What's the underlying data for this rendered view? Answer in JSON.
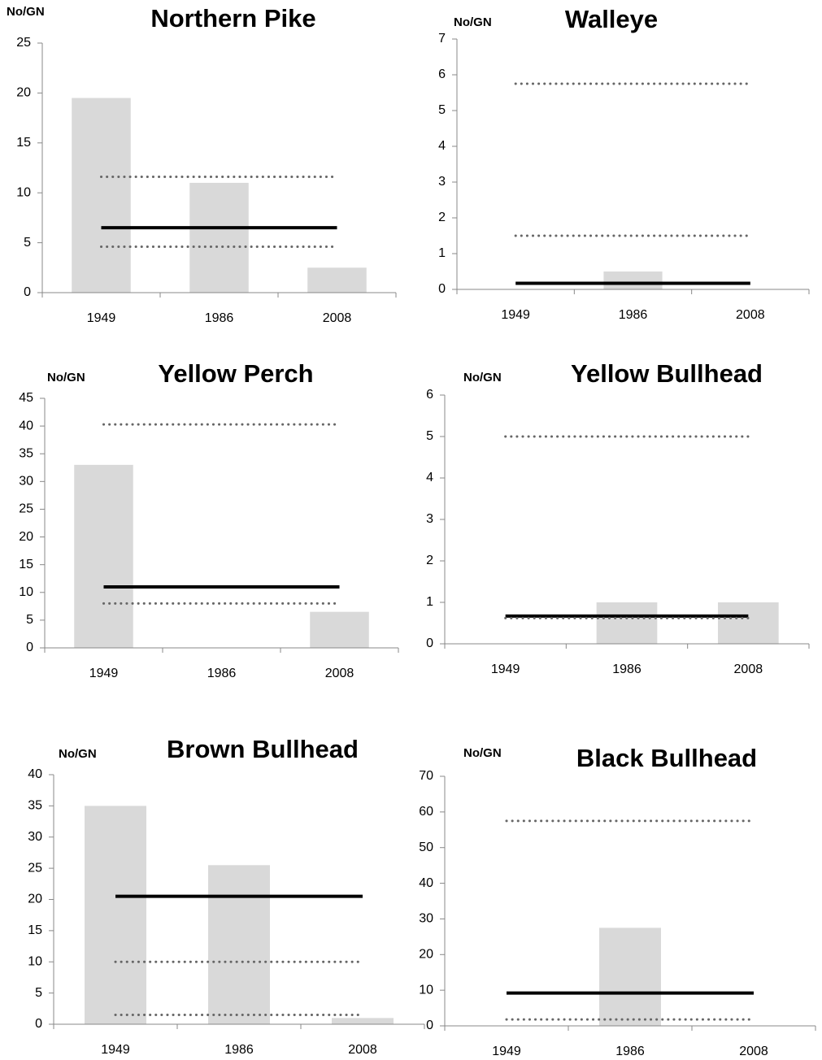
{
  "chart_data": [
    {
      "type": "bar",
      "title": "Northern Pike",
      "y_label": "No/GN",
      "categories": [
        "1949",
        "1986",
        "2008"
      ],
      "values": [
        19.5,
        11,
        2.5
      ],
      "color": "#d9d9d9",
      "ylim": [
        0,
        25
      ],
      "yticks": [
        0,
        5,
        10,
        15,
        20,
        25
      ],
      "reference_lines": [
        {
          "value": 6.5,
          "style": "solid"
        },
        {
          "value": 11.6,
          "style": "dotted"
        },
        {
          "value": 4.6,
          "style": "dotted"
        }
      ]
    },
    {
      "type": "bar",
      "title": "Walleye",
      "y_label": "No/GN",
      "categories": [
        "1949",
        "1986",
        "2008"
      ],
      "values": [
        0,
        0.5,
        0
      ],
      "color": "#d9d9d9",
      "ylim": [
        0,
        7
      ],
      "yticks": [
        0,
        1,
        2,
        3,
        4,
        5,
        6,
        7
      ],
      "reference_lines": [
        {
          "value": 0.17,
          "style": "solid"
        },
        {
          "value": 5.75,
          "style": "dotted"
        },
        {
          "value": 1.5,
          "style": "dotted"
        }
      ]
    },
    {
      "type": "bar",
      "title": "Yellow Perch",
      "y_label": "No/GN",
      "categories": [
        "1949",
        "1986",
        "2008"
      ],
      "values": [
        33,
        0,
        6.5
      ],
      "color": "#d9d9d9",
      "ylim": [
        0,
        45
      ],
      "yticks": [
        0,
        5,
        10,
        15,
        20,
        25,
        30,
        35,
        40,
        45
      ],
      "reference_lines": [
        {
          "value": 11,
          "style": "solid"
        },
        {
          "value": 40.3,
          "style": "dotted"
        },
        {
          "value": 8,
          "style": "dotted"
        }
      ]
    },
    {
      "type": "bar",
      "title": "Yellow Bullhead",
      "y_label": "No/GN",
      "categories": [
        "1949",
        "1986",
        "2008"
      ],
      "values": [
        0,
        1,
        1
      ],
      "color": "#d9d9d9",
      "ylim": [
        0,
        6
      ],
      "yticks": [
        0,
        1,
        2,
        3,
        4,
        5,
        6
      ],
      "reference_lines": [
        {
          "value": 0.67,
          "style": "solid"
        },
        {
          "value": 5,
          "style": "dotted"
        },
        {
          "value": 0.62,
          "style": "dotted"
        }
      ]
    },
    {
      "type": "bar",
      "title": "Brown Bullhead",
      "y_label": "No/GN",
      "categories": [
        "1949",
        "1986",
        "2008"
      ],
      "values": [
        35,
        25.5,
        1
      ],
      "color": "#d9d9d9",
      "ylim": [
        0,
        40
      ],
      "yticks": [
        0,
        5,
        10,
        15,
        20,
        25,
        30,
        35,
        40
      ],
      "reference_lines": [
        {
          "value": 20.5,
          "style": "solid"
        },
        {
          "value": 10,
          "style": "dotted"
        },
        {
          "value": 1.5,
          "style": "dotted"
        }
      ]
    },
    {
      "type": "bar",
      "title": "Black Bullhead",
      "y_label": "No/GN",
      "categories": [
        "1949",
        "1986",
        "2008"
      ],
      "values": [
        0,
        27.5,
        0
      ],
      "color": "#d9d9d9",
      "ylim": [
        0,
        70
      ],
      "yticks": [
        0,
        10,
        20,
        30,
        40,
        50,
        60,
        70
      ],
      "reference_lines": [
        {
          "value": 9.2,
          "style": "solid"
        },
        {
          "value": 57.5,
          "style": "dotted"
        },
        {
          "value": 1.8,
          "style": "dotted"
        }
      ]
    }
  ]
}
